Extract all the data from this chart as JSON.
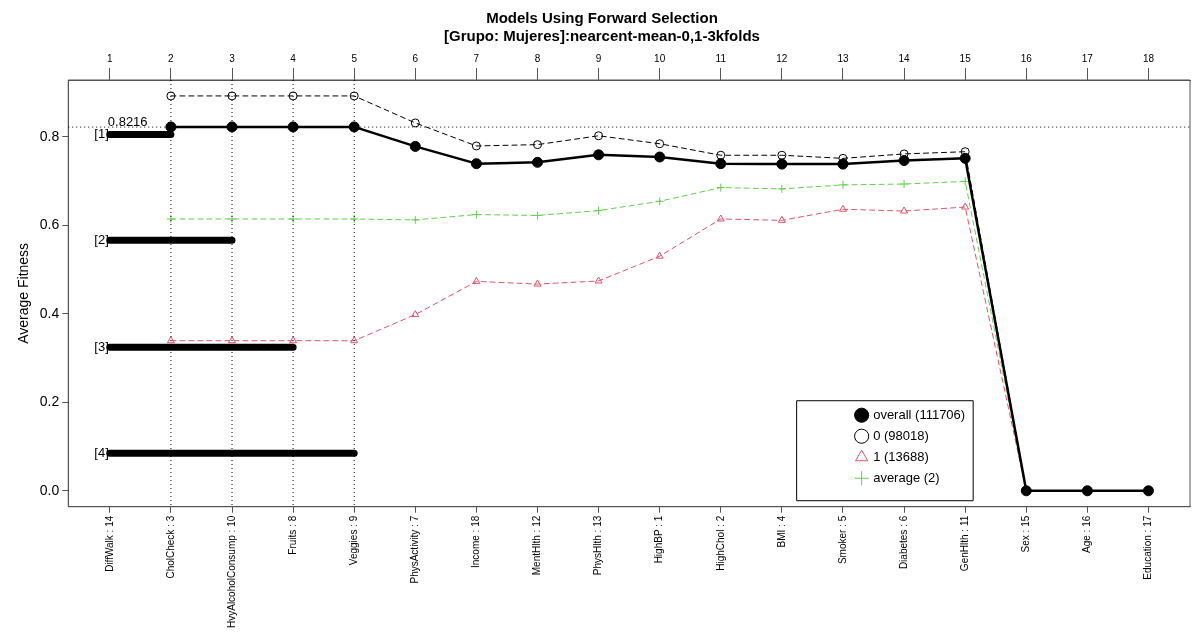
{
  "chart_data": {
    "type": "line",
    "title": "Models Using Forward Selection",
    "subtitle": "[Grupo: Mujeres]:nearcent-mean-0,1-3kfolds",
    "ylabel": "Average Fitness",
    "categories": [
      "DiffWalk : 14",
      "CholCheck : 3",
      "HvyAlcoholConsump : 10",
      "Fruits : 8",
      "Veggies : 9",
      "PhysActivity : 7",
      "Income : 18",
      "MentHlth : 12",
      "PhysHlth : 13",
      "HighBP : 1",
      "HighChol : 2",
      "BMI : 4",
      "Smoker : 5",
      "Diabetes : 6",
      "GenHlth : 11",
      "Sex : 15",
      "Age : 16",
      "Education : 17"
    ],
    "series": [
      {
        "name": "[1]",
        "color": "#000000",
        "marker": "none",
        "line_style": "solid",
        "values": [
          0.805,
          0.805,
          null,
          null,
          null,
          null,
          null,
          null,
          null,
          null,
          null,
          null,
          null,
          null,
          null,
          null,
          null,
          null
        ]
      },
      {
        "name": "[2]",
        "color": "#000000",
        "marker": "none",
        "line_style": "solid",
        "values": [
          0.566,
          0.566,
          0.566,
          null,
          null,
          null,
          null,
          null,
          null,
          null,
          null,
          null,
          null,
          null,
          null,
          null,
          null,
          null
        ]
      },
      {
        "name": "[3]",
        "color": "#000000",
        "marker": "none",
        "line_style": "solid",
        "values": [
          0.324,
          0.324,
          0.324,
          0.324,
          null,
          null,
          null,
          null,
          null,
          null,
          null,
          null,
          null,
          null,
          null,
          null,
          null,
          null
        ]
      },
      {
        "name": "[4]",
        "color": "#000000",
        "marker": "none",
        "line_style": "solid",
        "values": [
          0.085,
          0.085,
          0.085,
          0.085,
          0.085,
          null,
          null,
          null,
          null,
          null,
          null,
          null,
          null,
          null,
          null,
          null,
          null,
          null
        ]
      },
      {
        "name": "overall (111706)",
        "color": "#000000",
        "marker": "circle",
        "line_style": "solid",
        "values": [
          null,
          0.822,
          0.822,
          0.822,
          0.822,
          0.778,
          0.739,
          0.742,
          0.759,
          0.754,
          0.739,
          0.738,
          0.738,
          0.746,
          0.751,
          0,
          0,
          0
        ]
      },
      {
        "name": "0 (98018)",
        "color": "#000000",
        "marker": "circle",
        "line_style": "dashed",
        "values": [
          null,
          0.892,
          0.892,
          0.892,
          0.892,
          0.831,
          0.779,
          0.782,
          0.802,
          0.784,
          0.758,
          0.758,
          0.751,
          0.761,
          0.766,
          0,
          0,
          0
        ]
      },
      {
        "name": "1 (13688)",
        "color": "#df536b",
        "marker": "triangle",
        "line_style": "dashed",
        "values": [
          null,
          0.339,
          0.339,
          0.339,
          0.339,
          0.398,
          0.473,
          0.467,
          0.474,
          0.53,
          0.614,
          0.611,
          0.636,
          0.632,
          0.641,
          0,
          0,
          0
        ]
      },
      {
        "name": "average (2)",
        "color": "#61d04f",
        "marker": "cross",
        "line_style": "dashed",
        "values": [
          null,
          0.614,
          0.614,
          0.614,
          0.614,
          0.612,
          0.624,
          0.622,
          0.633,
          0.654,
          0.685,
          0.682,
          0.691,
          0.693,
          0.699,
          0,
          0,
          0
        ]
      }
    ],
    "ylim": [
      -0.036,
      0.928
    ],
    "yticks": [
      {
        "value": 0,
        "label": "0.0"
      },
      0.2,
      0.4,
      0.6,
      0.8
    ],
    "x2lim": [
      0.32,
      18.68
    ],
    "x2ticks": [
      1,
      2,
      3,
      4,
      5,
      6,
      7,
      8,
      9,
      10,
      11,
      12,
      13,
      14,
      15,
      16,
      17,
      18
    ],
    "ref_lines": [
      {
        "axis": "y",
        "value": 0.8216,
        "label": "0.8216",
        "line_style": "dotted"
      },
      {
        "axis": "x2",
        "value": 2,
        "line_style": "dotted"
      },
      {
        "axis": "x2",
        "value": 3,
        "line_style": "dotted"
      },
      {
        "axis": "x2",
        "value": 4,
        "line_style": "dotted"
      },
      {
        "axis": "x2",
        "value": 5,
        "line_style": "dotted"
      }
    ],
    "grid": false,
    "legend": "bottom right"
  }
}
